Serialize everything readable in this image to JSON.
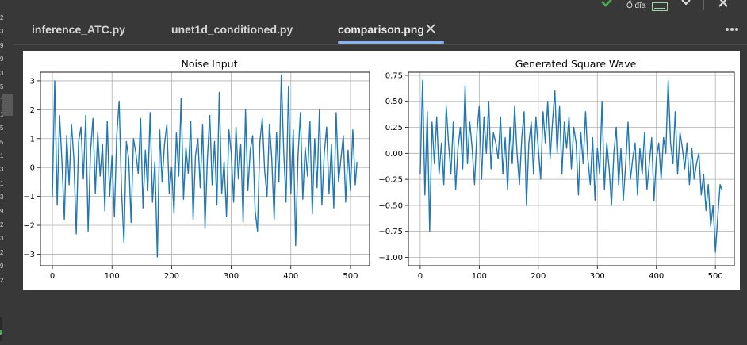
{
  "topbar": {
    "disk_label": "Ổ đĩa"
  },
  "gutter": {
    "numbers": [
      "2",
      "3",
      "9",
      "9",
      "3",
      "5",
      "1",
      "1",
      "5",
      "5",
      "1",
      "3",
      "1",
      "3",
      "9",
      "2",
      "3",
      "2",
      "9",
      "2"
    ]
  },
  "tabs": [
    {
      "label": "inference_ATC.py",
      "active": false
    },
    {
      "label": "unet1d_conditioned.py",
      "active": false
    },
    {
      "label": "comparison.png",
      "active": true
    }
  ],
  "icons": {
    "check": "check-icon",
    "disk": "disk-icon",
    "chevron": "chevron-down-icon",
    "close_window": "close-icon",
    "tab_close": "close-icon",
    "more": "more-horizontal-icon"
  },
  "colors": {
    "line": "#1f77b4",
    "accent": "#8ab4f8",
    "check": "#4caf50"
  },
  "chart_data": [
    {
      "type": "line",
      "title": "Noise Input",
      "xlabel": "",
      "ylabel": "",
      "xlim": [
        -20,
        532
      ],
      "ylim": [
        -3.4,
        3.3
      ],
      "xticks": [
        0,
        100,
        200,
        300,
        400,
        500
      ],
      "yticks": [
        -3,
        -2,
        -1,
        0,
        1,
        2,
        3
      ],
      "grid": true,
      "n_points": 512,
      "x": [
        0,
        4,
        8,
        12,
        16,
        20,
        24,
        28,
        32,
        36,
        40,
        44,
        48,
        52,
        56,
        60,
        64,
        68,
        72,
        76,
        80,
        84,
        88,
        92,
        96,
        100,
        104,
        108,
        112,
        116,
        120,
        124,
        128,
        132,
        136,
        140,
        144,
        148,
        152,
        156,
        160,
        164,
        168,
        172,
        176,
        180,
        184,
        188,
        192,
        196,
        200,
        204,
        208,
        212,
        216,
        220,
        224,
        228,
        232,
        236,
        240,
        244,
        248,
        252,
        256,
        260,
        264,
        268,
        272,
        276,
        280,
        284,
        288,
        292,
        296,
        300,
        304,
        308,
        312,
        316,
        320,
        324,
        328,
        332,
        336,
        340,
        344,
        348,
        352,
        356,
        360,
        364,
        368,
        372,
        376,
        380,
        384,
        388,
        392,
        396,
        400,
        404,
        408,
        412,
        416,
        420,
        424,
        428,
        432,
        436,
        440,
        444,
        448,
        452,
        456,
        460,
        464,
        468,
        472,
        476,
        480,
        484,
        488,
        492,
        496,
        500,
        504,
        508,
        511
      ],
      "values": [
        -1.0,
        3.0,
        -1.3,
        1.8,
        0.2,
        -1.8,
        1.1,
        -0.6,
        1.5,
        0.3,
        -2.3,
        0.9,
        1.4,
        -0.4,
        1.8,
        -2.2,
        0.6,
        1.7,
        -0.9,
        1.2,
        -0.3,
        0.8,
        -1.5,
        1.6,
        -1.0,
        0.4,
        -1.7,
        1.1,
        2.3,
        -0.8,
        -2.6,
        0.9,
        0.3,
        -1.9,
        1.0,
        0.5,
        -0.2,
        1.7,
        -1.4,
        0.6,
        -0.8,
        1.9,
        -1.2,
        0.2,
        -3.1,
        1.3,
        -0.5,
        0.8,
        1.5,
        -0.9,
        0.0,
        -1.6,
        1.2,
        -0.3,
        2.4,
        -1.1,
        0.7,
        -0.2,
        1.6,
        -1.8,
        0.4,
        1.0,
        -0.7,
        1.5,
        -2.1,
        0.3,
        1.8,
        -0.6,
        0.9,
        -1.3,
        2.6,
        -0.9,
        0.2,
        -1.7,
        1.3,
        0.5,
        -1.2,
        1.4,
        -0.4,
        0.8,
        -1.9,
        2.0,
        -0.8,
        0.6,
        1.1,
        -1.5,
        -2.2,
        0.9,
        1.7,
        -0.1,
        -1.0,
        1.5,
        0.3,
        -1.8,
        1.2,
        -0.5,
        3.2,
        0.6,
        -1.2,
        2.8,
        -0.9,
        1.3,
        -2.7,
        0.4,
        1.9,
        -1.1,
        0.7,
        -0.3,
        1.6,
        -1.6,
        1.0,
        -0.7,
        2.0,
        -1.3,
        0.5,
        1.4,
        -0.9,
        0.8,
        -1.4,
        1.9,
        -0.5,
        0.3,
        1.1,
        -1.2,
        0.6,
        -0.8,
        1.3,
        -0.6,
        0.2
      ]
    },
    {
      "type": "line",
      "title": "Generated Square Wave",
      "xlabel": "",
      "ylabel": "",
      "xlim": [
        -20,
        532
      ],
      "ylim": [
        -1.08,
        0.78
      ],
      "xticks": [
        0,
        100,
        200,
        300,
        400,
        500
      ],
      "yticks": [
        -1.0,
        -0.75,
        -0.5,
        -0.25,
        0.0,
        0.25,
        0.5,
        0.75
      ],
      "grid": true,
      "n_points": 512,
      "x": [
        0,
        4,
        8,
        12,
        16,
        20,
        24,
        28,
        32,
        36,
        40,
        44,
        48,
        52,
        56,
        60,
        64,
        68,
        72,
        76,
        80,
        84,
        88,
        92,
        96,
        100,
        104,
        108,
        112,
        116,
        120,
        124,
        128,
        132,
        136,
        140,
        144,
        148,
        152,
        156,
        160,
        164,
        168,
        172,
        176,
        180,
        184,
        188,
        192,
        196,
        200,
        204,
        208,
        212,
        216,
        220,
        224,
        228,
        232,
        236,
        240,
        244,
        248,
        252,
        256,
        260,
        264,
        268,
        272,
        276,
        280,
        284,
        288,
        292,
        296,
        300,
        304,
        308,
        312,
        316,
        320,
        324,
        328,
        332,
        336,
        340,
        344,
        348,
        352,
        356,
        360,
        364,
        368,
        372,
        376,
        380,
        384,
        388,
        392,
        396,
        400,
        404,
        408,
        412,
        416,
        420,
        424,
        428,
        432,
        436,
        440,
        444,
        448,
        452,
        456,
        460,
        464,
        468,
        472,
        476,
        480,
        484,
        488,
        492,
        496,
        500,
        504,
        508,
        511
      ],
      "values": [
        -0.2,
        0.7,
        -0.4,
        0.4,
        -0.75,
        0.3,
        -0.1,
        0.35,
        -0.2,
        0.1,
        -0.3,
        0.45,
        0.1,
        -0.2,
        0.3,
        -0.35,
        0.05,
        0.25,
        -0.15,
        0.65,
        -0.1,
        0.3,
        0.05,
        -0.3,
        0.2,
        0.45,
        -0.25,
        0.35,
        0.0,
        0.5,
        -0.15,
        0.2,
        0.1,
        -0.05,
        0.35,
        -0.2,
        0.15,
        -0.35,
        0.25,
        -0.1,
        0.45,
        0.0,
        -0.3,
        0.15,
        0.4,
        -0.5,
        0.1,
        0.3,
        -0.2,
        0.35,
        0.05,
        -0.25,
        0.4,
        0.1,
        0.5,
        -0.05,
        0.3,
        0.6,
        0.0,
        0.45,
        -0.2,
        0.3,
        0.05,
        0.35,
        -0.15,
        0.25,
        0.1,
        -0.4,
        0.2,
        -0.1,
        0.4,
        -0.05,
        -0.3,
        0.15,
        -0.45,
        0.05,
        -0.2,
        0.5,
        -0.35,
        0.1,
        -0.15,
        -0.5,
        0.0,
        0.25,
        -0.3,
        0.05,
        -0.45,
        -0.1,
        0.3,
        -0.25,
        -0.05,
        0.1,
        -0.4,
        0.05,
        -0.2,
        0.2,
        -0.35,
        -0.1,
        0.15,
        -0.45,
        -0.05,
        0.1,
        -0.25,
        0.15,
        0.0,
        0.7,
        0.1,
        -0.1,
        0.4,
        -0.2,
        0.2,
        0.05,
        -0.15,
        0.1,
        -0.3,
        0.05,
        -0.25,
        -0.1,
        0.0,
        -0.4,
        -0.2,
        -0.55,
        -0.3,
        -0.7,
        -0.5,
        -0.95,
        -0.6,
        -0.3,
        -0.35
      ]
    }
  ]
}
